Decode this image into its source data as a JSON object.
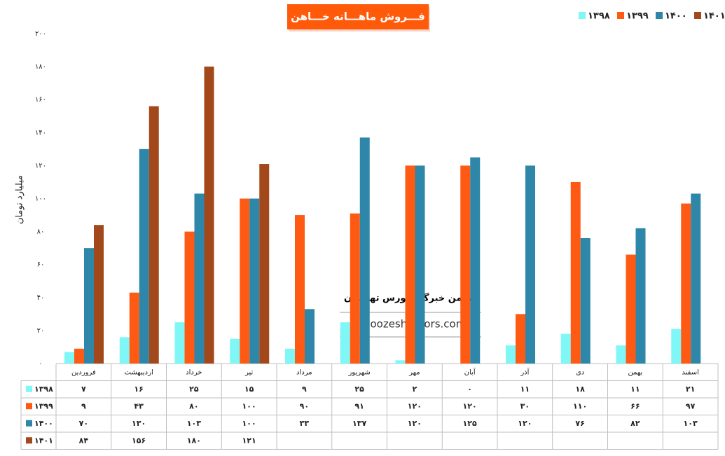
{
  "chart_data": {
    "type": "bar",
    "title": "فـــروش ماهـــانه خـــاهن",
    "y_label": "میلیارد تومان",
    "annotations": [
      "انجمن خبرگان بورس تهـــران",
      "amoozesh-boors.com"
    ],
    "categories": [
      "فروردین",
      "اردیبهشت",
      "خرداد",
      "تیر",
      "مرداد",
      "شهریور",
      "مهر",
      "آبان",
      "آذر",
      "دی",
      "بهمن",
      "اسفند"
    ],
    "series": [
      {
        "name": "۱۳۹۸",
        "color": "#80f7f7",
        "values": [
          7,
          16,
          25,
          15,
          9,
          25,
          2,
          0,
          11,
          18,
          11,
          21
        ],
        "value_labels": [
          "۷",
          "۱۶",
          "۲۵",
          "۱۵",
          "۹",
          "۲۵",
          "۲",
          "۰",
          "۱۱",
          "۱۸",
          "۱۱",
          "۲۱"
        ]
      },
      {
        "name": "۱۳۹۹",
        "color": "#ff5a14",
        "values": [
          9,
          43,
          80,
          100,
          90,
          91,
          120,
          120,
          30,
          110,
          66,
          97
        ],
        "value_labels": [
          "۹",
          "۴۳",
          "۸۰",
          "۱۰۰",
          "۹۰",
          "۹۱",
          "۱۲۰",
          "۱۲۰",
          "۳۰",
          "۱۱۰",
          "۶۶",
          "۹۷"
        ]
      },
      {
        "name": "۱۴۰۰",
        "color": "#2e86a8",
        "values": [
          70,
          130,
          103,
          100,
          33,
          137,
          120,
          125,
          120,
          76,
          82,
          103
        ],
        "value_labels": [
          "۷۰",
          "۱۳۰",
          "۱۰۳",
          "۱۰۰",
          "۳۳",
          "۱۳۷",
          "۱۲۰",
          "۱۲۵",
          "۱۲۰",
          "۷۶",
          "۸۲",
          "۱۰۳"
        ]
      },
      {
        "name": "۱۴۰۱",
        "color": "#a2481a",
        "values": [
          84,
          156,
          180,
          121,
          null,
          null,
          null,
          null,
          null,
          null,
          null,
          null
        ],
        "value_labels": [
          "۸۴",
          "۱۵۶",
          "۱۸۰",
          "۱۲۱",
          null,
          null,
          null,
          null,
          null,
          null,
          null,
          null
        ]
      }
    ],
    "ylim": [
      0,
      200
    ],
    "yticks": [
      {
        "value": 0,
        "label": "۰"
      },
      {
        "value": 20,
        "label": "۲۰"
      },
      {
        "value": 40,
        "label": "۴۰"
      },
      {
        "value": 60,
        "label": "۶۰"
      },
      {
        "value": 80,
        "label": "۸۰"
      },
      {
        "value": 100,
        "label": "۱۰۰"
      },
      {
        "value": 120,
        "label": "۱۲۰"
      },
      {
        "value": 140,
        "label": "۱۴۰"
      },
      {
        "value": 160,
        "label": "۱۶۰"
      },
      {
        "value": 180,
        "label": "۱۸۰"
      },
      {
        "value": 200,
        "label": "۲۰۰"
      }
    ],
    "grid": false,
    "legend": "top-right"
  }
}
